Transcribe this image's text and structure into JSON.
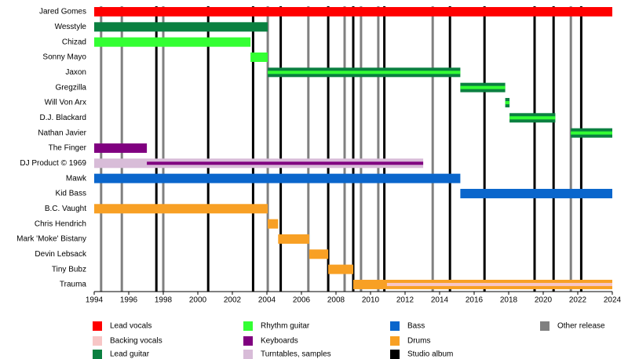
{
  "chart_data": {
    "type": "timeline",
    "xlim": [
      1994,
      2024
    ],
    "xticks": [
      1994,
      1996,
      1998,
      2000,
      2002,
      2004,
      2006,
      2008,
      2010,
      2012,
      2014,
      2016,
      2018,
      2020,
      2022,
      2024
    ],
    "legend": [
      {
        "name": "Lead vocals",
        "color": "#ff0000"
      },
      {
        "name": "Backing vocals",
        "color": "#f7c6c6"
      },
      {
        "name": "Lead guitar",
        "color": "#0a8040"
      },
      {
        "name": "Rhythm guitar",
        "color": "#33ff33"
      },
      {
        "name": "Keyboards",
        "color": "#800080"
      },
      {
        "name": "Turntables, samples",
        "color": "#d8bcd8"
      },
      {
        "name": "Bass",
        "color": "#0a66cc"
      },
      {
        "name": "Drums",
        "color": "#f8a024"
      },
      {
        "name": "Studio album",
        "color": "#000000"
      },
      {
        "name": "Other release",
        "color": "#808080"
      }
    ],
    "studio_albums": [
      1997.6,
      2000.6,
      2003.2,
      2004.8,
      2007.55,
      2009.0,
      2010.8,
      2014.6,
      2016.6,
      2019.5,
      2020.6,
      2022.2
    ],
    "other_releases": [
      1994.4,
      1995.6,
      1998.0,
      2004.05,
      2006.4,
      2008.5,
      2009.45,
      2010.45,
      2013.6,
      2021.6
    ],
    "members": [
      {
        "name": "Jared Gomes",
        "bars": [
          {
            "start": 1994,
            "end": 2024,
            "color": "#ff0000"
          }
        ],
        "stripes": []
      },
      {
        "name": "Wesstyle",
        "bars": [
          {
            "start": 1994,
            "end": 2004.05,
            "color": "#0a8040"
          }
        ],
        "stripes": []
      },
      {
        "name": "Chizad",
        "bars": [
          {
            "start": 1994,
            "end": 2003.05,
            "color": "#33ff33"
          }
        ],
        "stripes": []
      },
      {
        "name": "Sonny Mayo",
        "bars": [
          {
            "start": 2003.05,
            "end": 2004.05,
            "color": "#33ff33"
          }
        ],
        "stripes": []
      },
      {
        "name": "Jaxon",
        "bars": [
          {
            "start": 2004.05,
            "end": 2015.2,
            "color": "#0a8040"
          }
        ],
        "stripes": [
          {
            "start": 2004.05,
            "end": 2015.2,
            "color": "#33ff33"
          }
        ]
      },
      {
        "name": "Gregzilla",
        "bars": [
          {
            "start": 2015.2,
            "end": 2017.8,
            "color": "#0a8040"
          }
        ],
        "stripes": [
          {
            "start": 2015.2,
            "end": 2017.8,
            "color": "#33ff33"
          }
        ]
      },
      {
        "name": "Will Von Arx",
        "bars": [
          {
            "start": 2017.8,
            "end": 2018.05,
            "color": "#0a8040"
          }
        ],
        "stripes": [
          {
            "start": 2017.8,
            "end": 2018.05,
            "color": "#33ff33"
          }
        ]
      },
      {
        "name": "D.J. Blackard",
        "bars": [
          {
            "start": 2018.05,
            "end": 2020.7,
            "color": "#0a8040"
          }
        ],
        "stripes": [
          {
            "start": 2018.05,
            "end": 2020.7,
            "color": "#33ff33"
          }
        ]
      },
      {
        "name": "Nathan Javier",
        "bars": [
          {
            "start": 2021.6,
            "end": 2024,
            "color": "#0a8040"
          }
        ],
        "stripes": [
          {
            "start": 2021.6,
            "end": 2024,
            "color": "#33ff33"
          }
        ]
      },
      {
        "name": "The Finger",
        "bars": [
          {
            "start": 1994,
            "end": 1997.05,
            "color": "#800080"
          }
        ],
        "stripes": []
      },
      {
        "name": "DJ Product © 1969",
        "bars": [
          {
            "start": 1994,
            "end": 2013.05,
            "color": "#d8bcd8"
          }
        ],
        "stripes": [
          {
            "start": 1997.05,
            "end": 2013.05,
            "color": "#800080"
          }
        ]
      },
      {
        "name": "Mawk",
        "bars": [
          {
            "start": 1994,
            "end": 2015.2,
            "color": "#0a66cc"
          }
        ],
        "stripes": []
      },
      {
        "name": "Kid Bass",
        "bars": [
          {
            "start": 2015.2,
            "end": 2024,
            "color": "#0a66cc"
          }
        ],
        "stripes": []
      },
      {
        "name": "B.C. Vaught",
        "bars": [
          {
            "start": 1994,
            "end": 2004.05,
            "color": "#f8a024"
          }
        ],
        "stripes": []
      },
      {
        "name": "Chris Hendrich",
        "bars": [
          {
            "start": 2004.05,
            "end": 2004.65,
            "color": "#f8a024"
          }
        ],
        "stripes": []
      },
      {
        "name": "Mark 'Moke' Bistany",
        "bars": [
          {
            "start": 2004.65,
            "end": 2006.45,
            "color": "#f8a024"
          }
        ],
        "stripes": []
      },
      {
        "name": "Devin Lebsack",
        "bars": [
          {
            "start": 2006.45,
            "end": 2007.55,
            "color": "#f8a024"
          }
        ],
        "stripes": []
      },
      {
        "name": "Tiny Bubz",
        "bars": [
          {
            "start": 2007.55,
            "end": 2009.0,
            "color": "#f8a024"
          }
        ],
        "stripes": []
      },
      {
        "name": "Trauma",
        "bars": [
          {
            "start": 2009.0,
            "end": 2024,
            "color": "#f8a024"
          }
        ],
        "stripes": [
          {
            "start": 2010.95,
            "end": 2024,
            "color": "#f7c6c6"
          }
        ]
      }
    ]
  }
}
